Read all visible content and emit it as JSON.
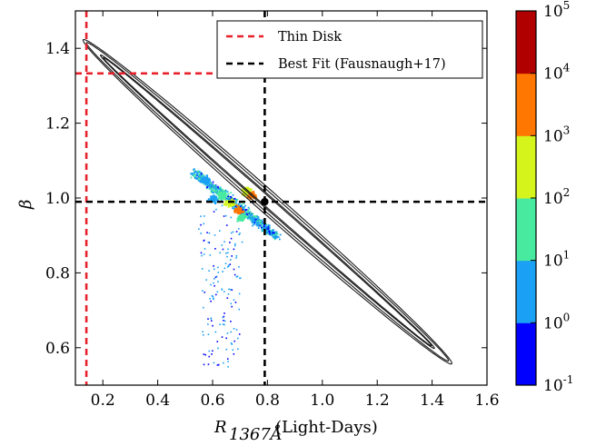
{
  "chart_data": {
    "type": "scatter",
    "xlabel": "R",
    "xlabel_sub": "1367Å",
    "xlabel_unit": "(Light-Days)",
    "ylabel": "β",
    "xlim": [
      0.1,
      1.6
    ],
    "ylim": [
      0.5,
      1.5
    ],
    "x_ticks": [
      "0.2",
      "0.4",
      "0.6",
      "0.8",
      "1.0",
      "1.2",
      "1.4",
      "1.6"
    ],
    "y_ticks": [
      "0.6",
      "0.8",
      "1.0",
      "1.2",
      "1.4"
    ],
    "legend": {
      "placement": "top-right",
      "entries": [
        {
          "label": "Thin Disk",
          "color": "#e8202a",
          "style": "dashed"
        },
        {
          "label": "Best Fit (Fausnaugh+17)",
          "color": "#000000",
          "style": "dashed"
        }
      ]
    },
    "reference_lines": {
      "thin_disk": {
        "x": 0.14,
        "y": 1.333,
        "color": "#e8202a"
      },
      "best_fit": {
        "x": 0.79,
        "y": 0.99,
        "color": "#000000"
      }
    },
    "best_fit_point": {
      "x": 0.79,
      "y": 0.99
    },
    "contours": [
      {
        "name": "inner",
        "center": [
          0.8,
          0.99
        ],
        "u": [
          0.598,
          -0.385
        ],
        "v": [
          0.0075,
          0.0117
        ]
      },
      {
        "name": "outer",
        "center": [
          0.8,
          0.99
        ],
        "u": [
          0.66,
          -0.425
        ],
        "v": [
          0.0138,
          0.0215
        ]
      }
    ],
    "density_clusters": [
      {
        "x": 0.57,
        "y": 1.05,
        "level": 1
      },
      {
        "x": 0.6,
        "y": 1.0,
        "level": 1
      },
      {
        "x": 0.63,
        "y": 1.01,
        "level": 2
      },
      {
        "x": 0.7,
        "y": 0.95,
        "level": 2
      },
      {
        "x": 0.66,
        "y": 0.99,
        "level": 3
      },
      {
        "x": 0.72,
        "y": 1.02,
        "level": 3
      },
      {
        "x": 0.69,
        "y": 0.97,
        "level": 4
      },
      {
        "x": 0.74,
        "y": 1.01,
        "level": 4
      }
    ],
    "colorbar": {
      "levels": [
        "10^-1",
        "10^0",
        "10^1",
        "10^2",
        "10^3",
        "10^4",
        "10^5"
      ],
      "labels": [
        {
          "base": "10",
          "exp": "-1"
        },
        {
          "base": "10",
          "exp": "0"
        },
        {
          "base": "10",
          "exp": "1"
        },
        {
          "base": "10",
          "exp": "2"
        },
        {
          "base": "10",
          "exp": "3"
        },
        {
          "base": "10",
          "exp": "4"
        },
        {
          "base": "10",
          "exp": "5"
        }
      ],
      "colors": [
        "#0000ff",
        "#1aa0f5",
        "#48eaa0",
        "#d4f41c",
        "#ff7600",
        "#b00000"
      ]
    }
  }
}
